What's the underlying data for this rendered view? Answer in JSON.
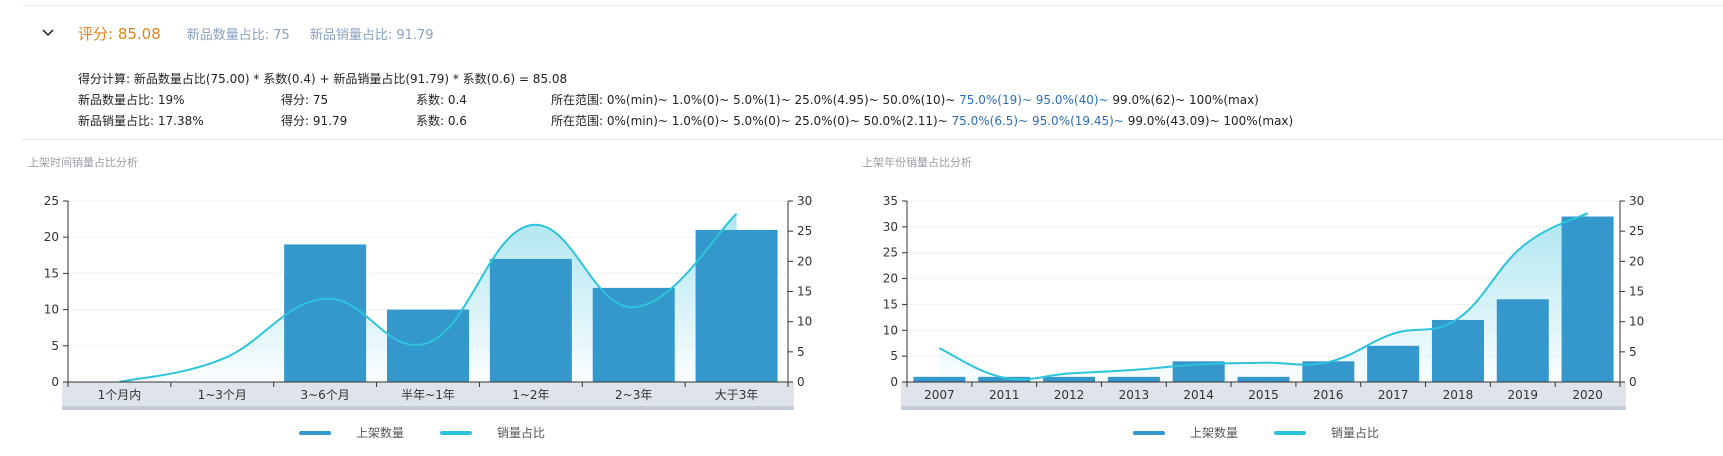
{
  "header": {
    "score": "评分: 85.08",
    "new_count_ratio": "新品数量占比: 75",
    "new_sales_ratio": "新品销量占比: 91.79"
  },
  "calc": {
    "formula": "得分计算: 新品数量占比(75.00) * 系数(0.4) + 新品销量占比(91.79) * 系数(0.6) = 85.08",
    "rows": [
      {
        "metric": "新品数量占比: 19%",
        "score": "得分: 75",
        "coef": "系数: 0.4",
        "range_prefix": "所在范围: 0%(min)~ 1.0%(0)~ 5.0%(1)~ 25.0%(4.95)~ 50.0%(10)~ ",
        "range_highlight": "75.0%(19)~ 95.0%(40)~",
        "range_suffix": " 99.0%(62)~ 100%(max)"
      },
      {
        "metric": "新品销量占比: 17.38%",
        "score": "得分: 91.79",
        "coef": "系数: 0.6",
        "range_prefix": "所在范围: 0%(min)~ 1.0%(0)~ 5.0%(0)~ 25.0%(0)~ 50.0%(2.11)~ ",
        "range_highlight": "75.0%(6.5)~ 95.0%(19.45)~",
        "range_suffix": " 99.0%(43.09)~ 100%(max)"
      }
    ]
  },
  "colors": {
    "bar": "#3498cd",
    "line": "#2ec3dc",
    "area": "#a9e4f0",
    "highlight": "#2e6fb6",
    "score": "#e0841b"
  },
  "icons": {
    "toggle": "chevron-down-icon"
  },
  "chart_data": [
    {
      "type": "bar",
      "title": "上架时间销量占比分析",
      "categories": [
        "1个月内",
        "1~3个月",
        "3~6个月",
        "半年~1年",
        "1~2年",
        "2~3年",
        "大于3年"
      ],
      "series": [
        {
          "name": "上架数量",
          "type": "bar",
          "axis": "left",
          "values": [
            0,
            0,
            19,
            10,
            17,
            13,
            21
          ]
        },
        {
          "name": "销量占比",
          "type": "line",
          "smooth": true,
          "area": true,
          "axis": "right",
          "values": [
            0,
            3.8,
            13.8,
            6.5,
            26,
            12.4,
            27.9
          ]
        }
      ],
      "ylim_left": [
        0,
        25
      ],
      "yticks_left": [
        0,
        5,
        10,
        15,
        20,
        25
      ],
      "ylim_right": [
        0,
        30
      ],
      "yticks_right": [
        0,
        5,
        10,
        15,
        20,
        25,
        30
      ],
      "grid": true,
      "legend": "bottom",
      "datazoom": true
    },
    {
      "type": "bar",
      "title": "上架年份销量占比分析",
      "categories": [
        "2007",
        "2011",
        "2012",
        "2013",
        "2014",
        "2015",
        "2016",
        "2017",
        "2018",
        "2019",
        "2020"
      ],
      "series": [
        {
          "name": "上架数量",
          "type": "bar",
          "axis": "left",
          "values": [
            1,
            1,
            1,
            1,
            4,
            1,
            4,
            7,
            12,
            16,
            32
          ]
        },
        {
          "name": "销量占比",
          "type": "line",
          "smooth": true,
          "area": true,
          "axis": "right",
          "values": [
            5.6,
            0.7,
            1.4,
            2,
            2.9,
            3.2,
            3.3,
            8,
            10.5,
            22.5,
            28
          ]
        }
      ],
      "ylim_left": [
        0,
        35
      ],
      "yticks_left": [
        0,
        5,
        10,
        15,
        20,
        25,
        30,
        35
      ],
      "ylim_right": [
        0,
        30
      ],
      "yticks_right": [
        0,
        5,
        10,
        15,
        20,
        25,
        30
      ],
      "grid": true,
      "legend": "bottom",
      "datazoom": true
    }
  ]
}
